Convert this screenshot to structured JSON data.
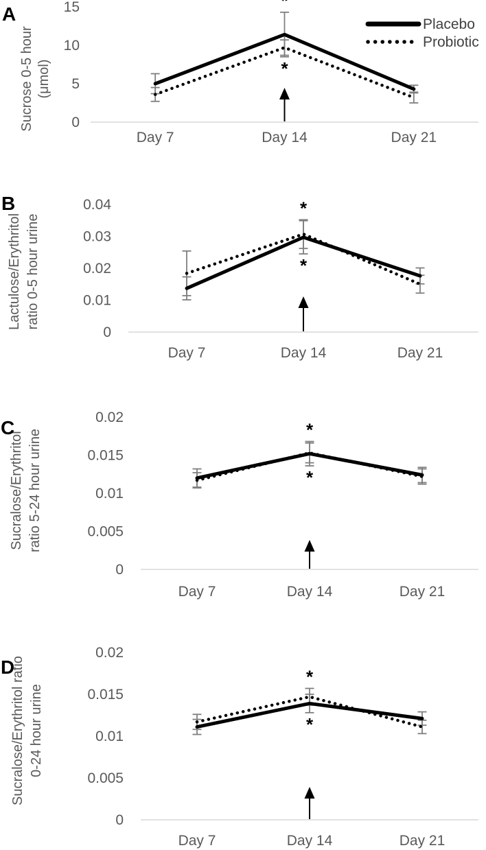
{
  "figure": {
    "background": "#ffffff",
    "colors": {
      "line": "#000000",
      "error_bar": "#7f7f7f",
      "axis_line": "#d9d9d9",
      "tick_text": "#595959",
      "legend_text": "#404040",
      "panel_letter": "#000000"
    },
    "legend": {
      "items": [
        {
          "label": "Placebo",
          "style": "solid"
        },
        {
          "label": "Probiotic",
          "style": "dotted"
        }
      ]
    }
  },
  "chart_data": [
    {
      "type": "line",
      "panel_label": "A",
      "ylabel": "Sucrose 0-5 hour (μmol)",
      "ylabel_lines": [
        "Sucrose 0-5 hour",
        "(μmol)"
      ],
      "categories": [
        "Day 7",
        "Day 14",
        "Day 21"
      ],
      "ytick_labels": [
        "0",
        "5",
        "10",
        "15"
      ],
      "ytick_values": [
        0,
        5,
        10,
        15
      ],
      "ylim": [
        0,
        15
      ],
      "grid": false,
      "legend_position": "top-right",
      "show_legend": true,
      "series": [
        {
          "name": "Placebo",
          "style": "solid",
          "values": [
            5.0,
            11.4,
            4.3
          ],
          "errors": [
            1.3,
            2.9,
            0.5
          ]
        },
        {
          "name": "Probiotic",
          "style": "dotted",
          "values": [
            3.6,
            9.7,
            3.2
          ],
          "errors": [
            0.9,
            1.0,
            0.7
          ]
        }
      ],
      "annotations": {
        "significance_marker": "*",
        "marked_category": "Day 14",
        "asterisk_above": true,
        "asterisk_below": true,
        "arrow_at_category": "Day 14"
      }
    },
    {
      "type": "line",
      "panel_label": "B",
      "ylabel": "Lactulose/Erythritol ratio 0-5 hour urine",
      "ylabel_lines": [
        "Lactulose/Erythritol",
        "ratio 0-5 hour urine"
      ],
      "categories": [
        "Day 7",
        "Day 14",
        "Day 21"
      ],
      "ytick_labels": [
        "0",
        "0.01",
        "0.02",
        "0.03",
        "0.04"
      ],
      "ytick_values": [
        0,
        0.01,
        0.02,
        0.03,
        0.04
      ],
      "ylim": [
        0,
        0.04
      ],
      "grid": false,
      "show_legend": false,
      "series": [
        {
          "name": "Placebo",
          "style": "solid",
          "values": [
            0.0137,
            0.0297,
            0.0176
          ],
          "errors": [
            0.0036,
            0.0052,
            0.0025
          ]
        },
        {
          "name": "Probiotic",
          "style": "dotted",
          "values": [
            0.0184,
            0.0307,
            0.015
          ],
          "errors": [
            0.007,
            0.0045,
            0.0028
          ]
        }
      ],
      "annotations": {
        "significance_marker": "*",
        "marked_category": "Day 14",
        "asterisk_above": true,
        "asterisk_below": true,
        "arrow_at_category": "Day 14"
      }
    },
    {
      "type": "line",
      "panel_label": "C",
      "ylabel": "Sucralose/Erythritol ratio 5-24 hour urine",
      "ylabel_lines": [
        "Sucralose/Erythritol",
        "ratio 5-24 hour urine"
      ],
      "categories": [
        "Day 7",
        "Day 14",
        "Day 21"
      ],
      "ytick_labels": [
        "0",
        "0.005",
        "0.01",
        "0.015",
        "0.02"
      ],
      "ytick_values": [
        0,
        0.005,
        0.01,
        0.015,
        0.02
      ],
      "ylim": [
        0,
        0.02
      ],
      "grid": false,
      "show_legend": false,
      "series": [
        {
          "name": "Placebo",
          "style": "solid",
          "values": [
            0.012,
            0.0152,
            0.0124
          ],
          "errors": [
            0.0012,
            0.0016,
            0.001
          ]
        },
        {
          "name": "Probiotic",
          "style": "dotted",
          "values": [
            0.0117,
            0.0153,
            0.0122
          ],
          "errors": [
            0.001,
            0.0013,
            0.001
          ]
        }
      ],
      "annotations": {
        "significance_marker": "*",
        "marked_category": "Day 14",
        "asterisk_above": true,
        "asterisk_below": true,
        "arrow_at_category": "Day 14"
      }
    },
    {
      "type": "line",
      "panel_label": "D",
      "ylabel": "Sucralose/Erythritol ratio 0-24 hour urine",
      "ylabel_lines": [
        "Sucralose/Erythritol ratio",
        "0-24 hour urine"
      ],
      "categories": [
        "Day 7",
        "Day 14",
        "Day 21"
      ],
      "ytick_labels": [
        "0",
        "0.005",
        "0.01",
        "0.015",
        "0.02"
      ],
      "ytick_values": [
        0,
        0.005,
        0.01,
        0.015,
        0.02
      ],
      "ylim": [
        0,
        0.02
      ],
      "grid": false,
      "show_legend": false,
      "series": [
        {
          "name": "Placebo",
          "style": "solid",
          "values": [
            0.0111,
            0.0139,
            0.0121
          ],
          "errors": [
            0.0009,
            0.0011,
            0.0008
          ]
        },
        {
          "name": "Probiotic",
          "style": "dotted",
          "values": [
            0.0117,
            0.0147,
            0.0111
          ],
          "errors": [
            0.0009,
            0.001,
            0.0008
          ]
        }
      ],
      "annotations": {
        "significance_marker": "*",
        "marked_category": "Day 14",
        "asterisk_above": true,
        "asterisk_below": true,
        "arrow_at_category": "Day 14"
      }
    }
  ]
}
